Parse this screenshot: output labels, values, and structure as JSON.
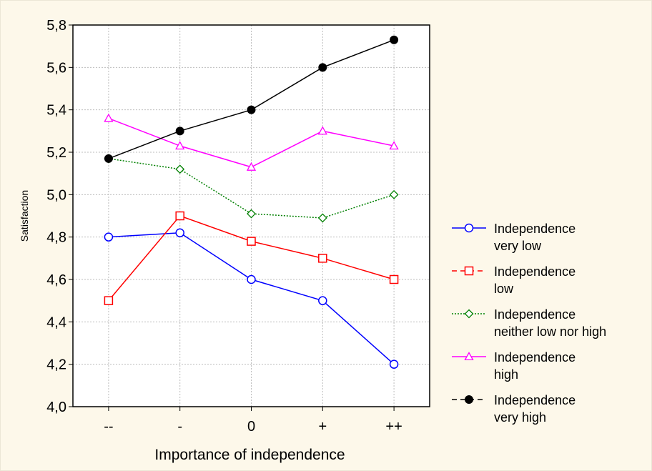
{
  "chart_data": {
    "type": "line",
    "xlabel": "Importance of independence",
    "ylabel": "Satisfaction",
    "categories": [
      "--",
      "-",
      "0",
      "+",
      "++"
    ],
    "ylim": [
      4.0,
      5.8
    ],
    "yticks": [
      "4,0",
      "4,2",
      "4,4",
      "4,6",
      "4,8",
      "5,0",
      "5,2",
      "5,4",
      "5,6",
      "5,8"
    ],
    "grid": true,
    "legend_position": "right",
    "series": [
      {
        "name_lines": [
          "Independence",
          "very low"
        ],
        "values": [
          4.8,
          4.82,
          4.6,
          4.5,
          4.2
        ],
        "color": "#0000ff",
        "marker": "circle-open",
        "dash": "solid"
      },
      {
        "name_lines": [
          "Independence",
          "low"
        ],
        "values": [
          4.5,
          4.9,
          4.78,
          4.7,
          4.6
        ],
        "color": "#ff0000",
        "marker": "square-open",
        "dash": "solid"
      },
      {
        "name_lines": [
          "Independence",
          "neither low nor high"
        ],
        "values": [
          5.17,
          5.12,
          4.91,
          4.89,
          5.0
        ],
        "color": "#008000",
        "marker": "diamond-open",
        "dash": "dotted"
      },
      {
        "name_lines": [
          "Independence",
          "high"
        ],
        "values": [
          5.36,
          5.23,
          5.13,
          5.3,
          5.23
        ],
        "color": "#ff00ff",
        "marker": "triangle-open",
        "dash": "solid"
      },
      {
        "name_lines": [
          "Independence",
          "very high"
        ],
        "values": [
          5.17,
          5.3,
          5.4,
          5.6,
          5.73
        ],
        "color": "#000000",
        "marker": "circle-filled",
        "dash": "solid"
      }
    ]
  }
}
